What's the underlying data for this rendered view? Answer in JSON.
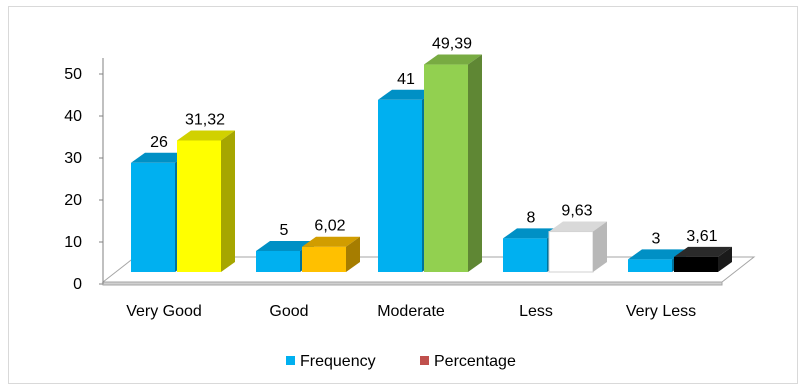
{
  "chart_data": {
    "type": "bar",
    "categories": [
      "Very Good",
      "Good",
      "Moderate",
      "Less",
      "Very Less"
    ],
    "series": [
      {
        "name": "Frequency",
        "values": [
          26,
          5,
          41,
          8,
          3
        ],
        "labels": [
          "26",
          "5",
          "41",
          "8",
          "3"
        ],
        "legend_color": "#00b0f0"
      },
      {
        "name": "Percentage",
        "values": [
          31.32,
          6.02,
          49.39,
          9.63,
          3.61
        ],
        "labels": [
          "31,32",
          "6,02",
          "49,39",
          "9,63",
          "3,61"
        ],
        "legend_color": "#c0504d"
      }
    ],
    "bar_colors": {
      "Frequency": [
        "#00b0f0",
        "#00b0f0",
        "#00b0f0",
        "#00b0f0",
        "#00b0f0"
      ],
      "Percentage": [
        "#ffff00",
        "#ffc000",
        "#92d050",
        "#ffffff",
        "#000000"
      ]
    },
    "y_ticks": [
      "0",
      "10",
      "20",
      "30",
      "40",
      "50"
    ],
    "ylim": [
      0,
      50
    ],
    "grid": false,
    "legend_position": "bottom",
    "style": "3d-clustered-column"
  }
}
